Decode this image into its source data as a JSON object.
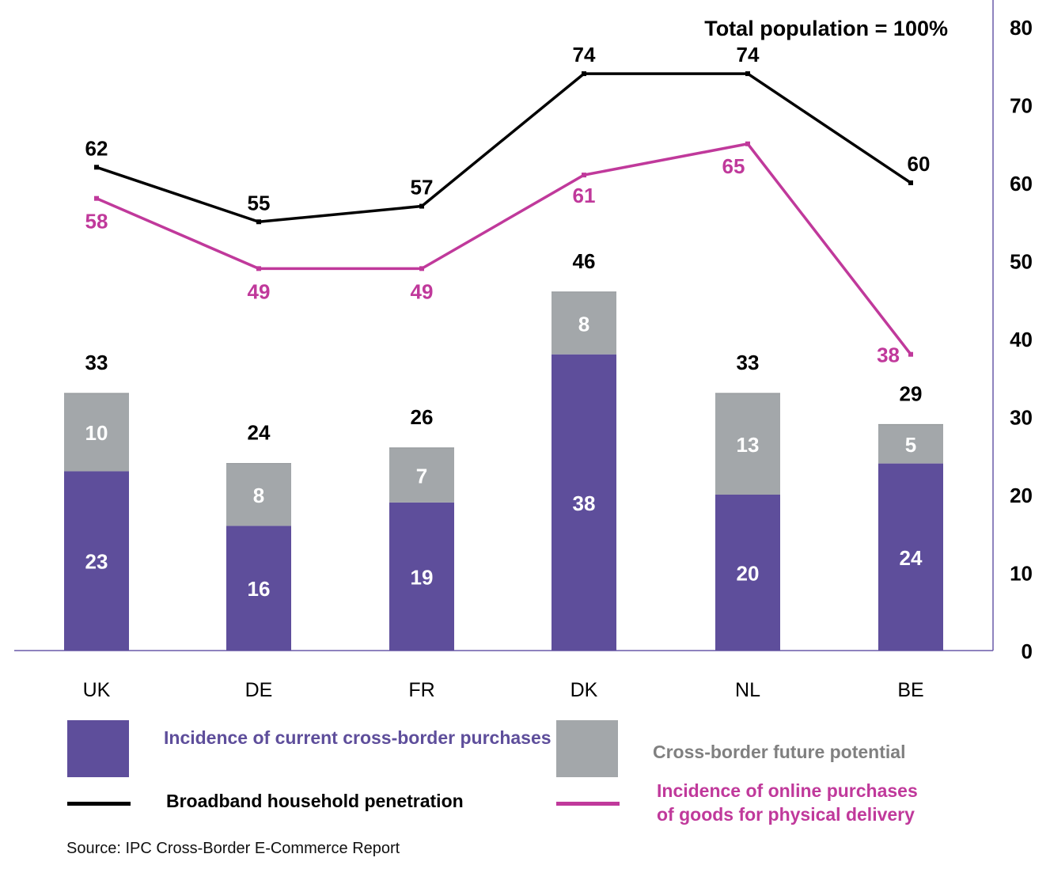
{
  "chart_data": {
    "type": "bar",
    "subtype": "stacked bar with line overlays",
    "annotation": "Total population = 100%",
    "categories": [
      "UK",
      "DE",
      "FR",
      "DK",
      "NL",
      "BE"
    ],
    "series": [
      {
        "name": "Incidence of current cross-border purchases",
        "kind": "bar",
        "stack": "s",
        "color": "#5e4e9b",
        "values": [
          23,
          16,
          19,
          38,
          20,
          24
        ]
      },
      {
        "name": "Cross-border future potential",
        "kind": "bar",
        "stack": "s",
        "color": "#a3a7aa",
        "values": [
          10,
          8,
          7,
          8,
          13,
          5
        ]
      },
      {
        "name": "Broadband household penetration",
        "kind": "line",
        "color": "#000000",
        "values": [
          62,
          55,
          57,
          74,
          74,
          60
        ]
      },
      {
        "name": "Incidence of online purchases of goods for physical delivery",
        "kind": "line",
        "color": "#c0399b",
        "values": [
          58,
          49,
          49,
          61,
          65,
          38
        ]
      }
    ],
    "totals": [
      33,
      24,
      26,
      46,
      33,
      29
    ],
    "y_axis": {
      "position": "right",
      "ylim": [
        0,
        80
      ],
      "ticks": [
        0,
        10,
        20,
        30,
        40,
        50,
        60,
        70,
        80
      ]
    },
    "legend": {
      "position": "bottom",
      "items": [
        {
          "label_lines": [
            "Incidence of current cross-border purchases"
          ],
          "shape": "box",
          "color": "#5e4e9b",
          "text_color": "#5e4e9b"
        },
        {
          "label_lines": [
            "Cross-border future potential"
          ],
          "shape": "box",
          "color": "#a3a7aa",
          "text_color": "#808080"
        },
        {
          "label_lines": [
            "Broadband household penetration"
          ],
          "shape": "line",
          "color": "#000000",
          "text_color": "#000000"
        },
        {
          "label_lines": [
            "Incidence of online purchases",
            "of goods for physical delivery"
          ],
          "shape": "line",
          "color": "#c0399b",
          "text_color": "#c0399b"
        }
      ]
    },
    "grid": false
  },
  "source": "Source: IPC Cross-Border E-Commerce Report"
}
